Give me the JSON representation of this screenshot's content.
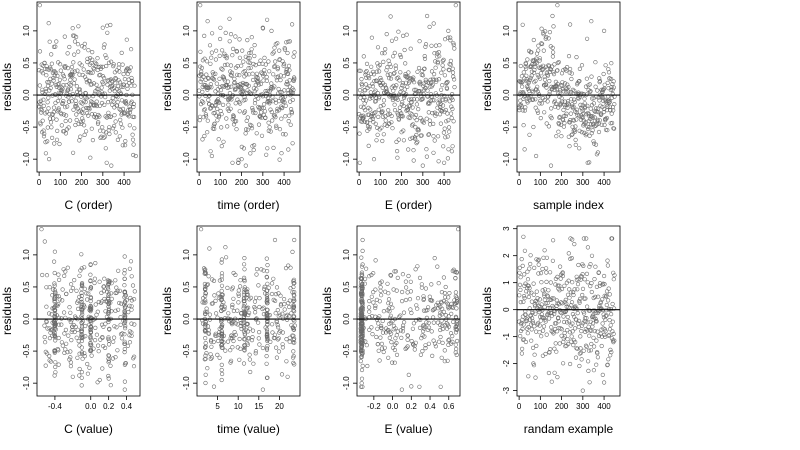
{
  "figure": {
    "layout": "2 rows x 4 columns",
    "background": "#ffffff",
    "point_color": "#6b6b6b",
    "zero_line_color": "#000000"
  },
  "chart_data": [
    {
      "id": "p1",
      "type": "scatter",
      "xlabel": "C (order)",
      "ylabel": "residuals",
      "xlim": [
        -10,
        475
      ],
      "ylim": [
        -1.2,
        1.45
      ],
      "xticks": [
        0,
        100,
        200,
        300,
        400
      ],
      "xtick_labels": [
        "0",
        "100",
        "200",
        "300",
        "400"
      ],
      "yticks": [
        -1.0,
        -0.5,
        0.0,
        0.5,
        1.0
      ],
      "ytick_labels": [
        "-1.0",
        "-0.5",
        "0.0",
        "0.5",
        "1.0"
      ],
      "hline": 0.0,
      "pattern": "order",
      "n": 450,
      "sd": 0.4,
      "points_x": [
        3,
        45,
        300,
        70,
        160,
        340,
        455,
        250
      ],
      "points_y": [
        1.4,
        1.12,
        1.05,
        0.75,
        -0.9,
        -1.1,
        -0.95,
        0.55
      ]
    },
    {
      "id": "p2",
      "type": "scatter",
      "xlabel": "time (order)",
      "ylabel": "residuals",
      "xlim": [
        -10,
        475
      ],
      "ylim": [
        -1.2,
        1.45
      ],
      "xticks": [
        0,
        100,
        200,
        300,
        400
      ],
      "xtick_labels": [
        "0",
        "100",
        "200",
        "300",
        "400"
      ],
      "yticks": [
        -1.0,
        -0.5,
        0.0,
        0.5,
        1.0
      ],
      "ytick_labels": [
        "-1.0",
        "-0.5",
        "0.0",
        "0.5",
        "1.0"
      ],
      "hline": 0.0,
      "pattern": "order",
      "n": 450,
      "sd": 0.4,
      "points_x": [
        5,
        40,
        150,
        220,
        420,
        60,
        300,
        200
      ],
      "points_y": [
        1.4,
        1.15,
        0.95,
        -1.1,
        -0.85,
        -0.95,
        1.05,
        -1.0
      ]
    },
    {
      "id": "p3",
      "type": "scatter",
      "xlabel": "E (order)",
      "ylabel": "residuals",
      "xlim": [
        -10,
        475
      ],
      "ylim": [
        -1.2,
        1.45
      ],
      "xticks": [
        0,
        100,
        200,
        300,
        400
      ],
      "xtick_labels": [
        "0",
        "100",
        "200",
        "300",
        "400"
      ],
      "yticks": [
        -1.0,
        -0.5,
        0.0,
        0.5,
        1.0
      ],
      "ytick_labels": [
        "-1.0",
        "-0.5",
        "0.0",
        "0.5",
        "1.0"
      ],
      "hline": 0.0,
      "pattern": "order",
      "n": 450,
      "sd": 0.4,
      "points_x": [
        455,
        70,
        300,
        350,
        420,
        130,
        440
      ],
      "points_y": [
        1.4,
        -1.0,
        -1.1,
        -0.9,
        1.0,
        0.95,
        -0.8
      ]
    },
    {
      "id": "p4",
      "type": "scatter",
      "xlabel": "sample index",
      "ylabel": "residuals",
      "xlim": [
        -10,
        475
      ],
      "ylim": [
        -1.2,
        1.45
      ],
      "xticks": [
        0,
        100,
        200,
        300,
        400
      ],
      "xtick_labels": [
        "0",
        "100",
        "200",
        "300",
        "400"
      ],
      "yticks": [
        -1.0,
        -0.5,
        0.0,
        0.5,
        1.0
      ],
      "ytick_labels": [
        "-1.0",
        "-0.5",
        "0.0",
        "0.5",
        "1.0"
      ],
      "hline": 0.0,
      "pattern": "wave",
      "n": 450,
      "sd": 0.35,
      "points_x": [
        180,
        240,
        340,
        80,
        330,
        150,
        400
      ],
      "points_y": [
        1.4,
        1.1,
        1.15,
        -0.95,
        -1.05,
        -1.1,
        1.0
      ]
    },
    {
      "id": "p5",
      "type": "scatter",
      "xlabel": "C (value)",
      "ylabel": "residuals",
      "xlim": [
        -0.6,
        0.55
      ],
      "ylim": [
        -1.2,
        1.45
      ],
      "xticks": [
        -0.4,
        0.0,
        0.2,
        0.4
      ],
      "xtick_labels": [
        "-0.4",
        "0.0",
        "0.2",
        "0.4"
      ],
      "yticks": [
        -1.0,
        -0.5,
        0.0,
        0.5,
        1.0
      ],
      "ytick_labels": [
        "-1.0",
        "-0.5",
        "0.0",
        "0.5",
        "1.0"
      ],
      "hline": 0.0,
      "pattern": "columns",
      "n": 450,
      "sd": 0.4,
      "clusters": [
        -0.4,
        0.38,
        -0.1,
        0.2,
        0.0
      ],
      "points_x": [
        -0.55,
        -0.4,
        0.38,
        0.45,
        0.1,
        -0.2
      ],
      "points_y": [
        1.4,
        1.05,
        -1.1,
        0.9,
        -0.95,
        -0.9
      ]
    },
    {
      "id": "p6",
      "type": "scatter",
      "xlabel": "time (value)",
      "ylabel": "residuals",
      "xlim": [
        0,
        25
      ],
      "ylim": [
        -1.2,
        1.45
      ],
      "xticks": [
        5,
        10,
        15,
        20
      ],
      "xtick_labels": [
        "5",
        "10",
        "15",
        "20"
      ],
      "yticks": [
        -1.0,
        -0.5,
        0.0,
        0.5,
        1.0
      ],
      "ytick_labels": [
        "-1.0",
        "-0.5",
        "0.0",
        "0.5",
        "1.0"
      ],
      "hline": 0.0,
      "pattern": "columns",
      "n": 450,
      "sd": 0.4,
      "clusters": [
        11.5,
        23.5,
        6,
        17,
        2
      ],
      "points_x": [
        1,
        3,
        11.5,
        16,
        22,
        6
      ],
      "points_y": [
        1.4,
        1.1,
        0.95,
        -1.1,
        -0.9,
        -0.95
      ]
    },
    {
      "id": "p7",
      "type": "scatter",
      "xlabel": "E (value)",
      "ylabel": "residuals",
      "xlim": [
        -0.38,
        0.72
      ],
      "ylim": [
        -1.2,
        1.45
      ],
      "xticks": [
        -0.2,
        0.0,
        0.2,
        0.4,
        0.6
      ],
      "xtick_labels": [
        "-0.2",
        "0.0",
        "0.2",
        "0.4",
        "0.6"
      ],
      "yticks": [
        -1.0,
        -0.5,
        0.0,
        0.5,
        1.0
      ],
      "ytick_labels": [
        "-1.0",
        "-0.5",
        "0.0",
        "0.5",
        "1.0"
      ],
      "hline": 0.0,
      "pattern": "dense-left",
      "n": 450,
      "sd": 0.4,
      "clusters": [
        -0.33,
        0.68
      ],
      "points_x": [
        0.7,
        0.2,
        0.1,
        0.45,
        -0.33
      ],
      "points_y": [
        1.4,
        -1.05,
        -1.1,
        0.95,
        -1.0
      ]
    },
    {
      "id": "p8",
      "type": "scatter",
      "xlabel": "randam example",
      "ylabel": "residuals",
      "xlim": [
        -10,
        475
      ],
      "ylim": [
        -3.2,
        3.1
      ],
      "xticks": [
        0,
        100,
        200,
        300,
        400
      ],
      "xtick_labels": [
        "0",
        "100",
        "200",
        "300",
        "400"
      ],
      "yticks": [
        -3,
        -2,
        -1,
        0,
        1,
        2,
        3
      ],
      "ytick_labels": [
        "-3",
        "-2",
        "-1",
        "0",
        "1",
        "2",
        "3"
      ],
      "hline": 0.0,
      "pattern": "random",
      "n": 450,
      "sd": 1.0,
      "points_x": [
        20,
        120,
        250,
        400,
        300,
        180
      ],
      "points_y": [
        2.7,
        2.2,
        2.6,
        -2.7,
        -3.0,
        -2.5
      ]
    }
  ]
}
